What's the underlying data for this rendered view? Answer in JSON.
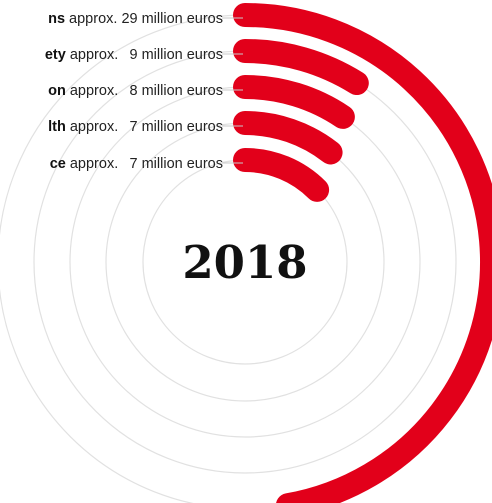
{
  "chart_data": {
    "type": "radial-bar",
    "center_label": "2018",
    "unit": "million euros",
    "prefix": "approx.",
    "max_value": 29,
    "series": [
      {
        "name": "…ns",
        "value": 29,
        "value_text": "29",
        "unit_text": "million euros"
      },
      {
        "name": "…ety",
        "value": 9,
        "value_text": "9",
        "unit_text": "million euros"
      },
      {
        "name": "…on",
        "value": 8,
        "value_text": "8",
        "unit_text": "million euros"
      },
      {
        "name": "…lth",
        "value": 7,
        "value_text": "7",
        "unit_text": "million euros"
      },
      {
        "name": "…ce",
        "value": 7,
        "value_text": "7",
        "unit_text": "million euros"
      }
    ],
    "colors": {
      "arc": "#e2001a",
      "ring": "#e1e1e1",
      "leader": "#c9c9c9"
    }
  }
}
